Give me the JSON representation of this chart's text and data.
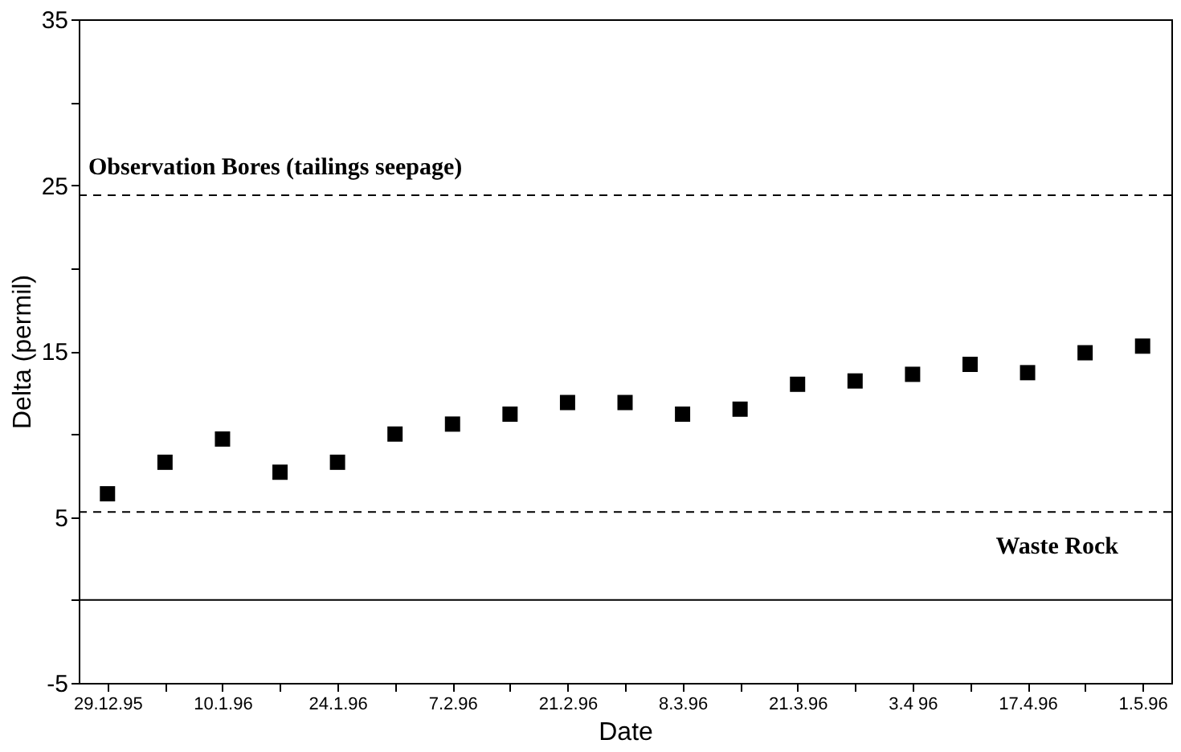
{
  "chart_data": {
    "type": "scatter",
    "xlabel": "Date",
    "ylabel": "Delta (permil)",
    "categories": [
      "29.12.95",
      null,
      "10.1.96",
      null,
      "24.1.96",
      null,
      "7.2.96",
      null,
      "21.2.96",
      null,
      "8.3.96",
      null,
      "21.3.96",
      null,
      "3.4 96",
      null,
      "17.4.96",
      null,
      "1.5.96"
    ],
    "series": [
      {
        "color": "#000000",
        "values": [
          6.4,
          8.3,
          9.7,
          7.7,
          8.3,
          10.0,
          10.6,
          11.2,
          11.9,
          11.9,
          11.2,
          11.5,
          13.0,
          13.2,
          13.6,
          14.2,
          13.7,
          14.9,
          15.3
        ]
      }
    ],
    "marker": "square",
    "ylim": [
      -5,
      35
    ],
    "yticks": [
      -5,
      {
        "value": 0,
        "label": null
      },
      5,
      {
        "value": 10,
        "label": null
      },
      15,
      {
        "value": 20,
        "label": null
      },
      25,
      {
        "value": 30,
        "label": null
      },
      35
    ],
    "ref_lines": [
      {
        "axis": "y",
        "value": 24.4,
        "label": "Observation Bores (tailings seepage)",
        "line_style": "dashed",
        "color": "#000000"
      },
      {
        "axis": "y",
        "value": 5.3,
        "label": "Waste Rock",
        "line_style": "dashed",
        "color": "#000000"
      },
      {
        "axis": "y",
        "value": 0,
        "line_style": "solid",
        "color": "#000000"
      }
    ],
    "grid": false
  }
}
